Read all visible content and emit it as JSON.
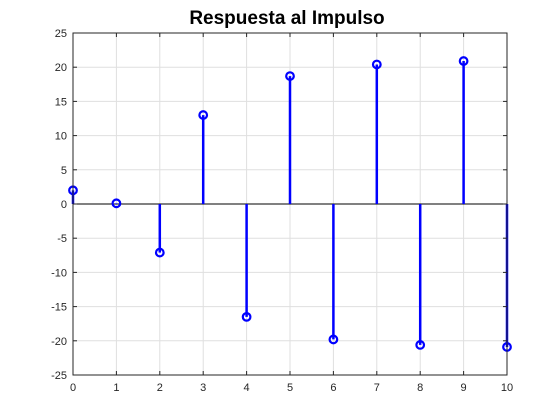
{
  "chart_data": {
    "type": "stem",
    "title": "Respuesta al Impulso",
    "xlabel": "",
    "ylabel": "",
    "x": [
      0,
      1,
      2,
      3,
      4,
      5,
      6,
      7,
      8,
      9,
      10
    ],
    "values": [
      2,
      0.1,
      -7.1,
      13,
      -16.5,
      18.7,
      -19.8,
      20.4,
      -20.6,
      20.9,
      -20.9
    ],
    "xlim": [
      0,
      10
    ],
    "ylim": [
      -25,
      25
    ],
    "xticks": [
      0,
      1,
      2,
      3,
      4,
      5,
      6,
      7,
      8,
      9,
      10
    ],
    "yticks": [
      -25,
      -20,
      -15,
      -10,
      -5,
      0,
      5,
      10,
      15,
      20,
      25
    ],
    "grid": true,
    "baseline": 0,
    "colors": {
      "series": "#0000ff",
      "grid": "#dfdfdf",
      "axes": "#262626",
      "baseline": "#000000"
    }
  }
}
